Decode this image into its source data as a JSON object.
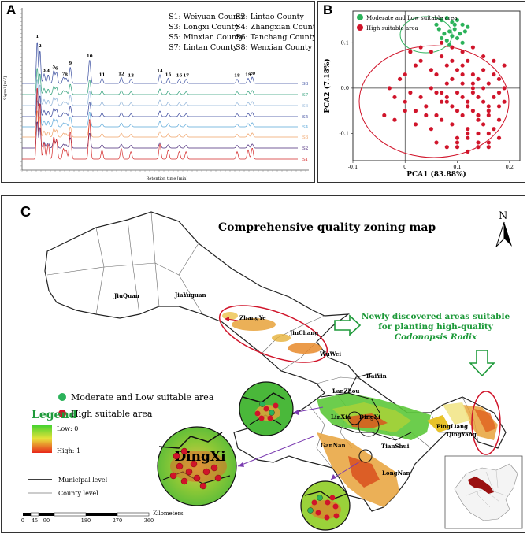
{
  "panelA": {
    "label": "A",
    "legend": [
      "S1: Weiyuan County",
      "S2: Lintao County",
      "S3: Longxi County",
      "S4: Zhangxian County",
      "S5: Minxian County",
      "S6: Tanchang County",
      "S7: Lintan County",
      "S8: Wenxian County"
    ],
    "ylabel": "Signal [mV]",
    "xlabel": "Retention time [min]",
    "traces": [
      {
        "name": "S8",
        "color": "#3b4fa0"
      },
      {
        "name": "S7",
        "color": "#2e9e78"
      },
      {
        "name": "S6",
        "color": "#8fb3d8"
      },
      {
        "name": "S5",
        "color": "#34449a"
      },
      {
        "name": "S4",
        "color": "#5aa7d9"
      },
      {
        "name": "S3",
        "color": "#f0a266"
      },
      {
        "name": "S2",
        "color": "#4a2a7a"
      },
      {
        "name": "S1",
        "color": "#d42a2a"
      }
    ],
    "peak_labels": [
      "1",
      "2",
      "3",
      "4",
      "5",
      "6",
      "7",
      "8",
      "9",
      "10",
      "11",
      "12",
      "13",
      "14",
      "15",
      "16",
      "17",
      "18",
      "19",
      "20"
    ]
  },
  "chart_data": {
    "type": "scatter",
    "title": "",
    "xlabel": "PCA1 (83.88%)",
    "ylabel": "PCA2 (7.18%)",
    "xlim": [
      -0.1,
      0.22
    ],
    "ylim": [
      -0.16,
      0.17
    ],
    "xticks": [
      "-0.1",
      "0",
      "0.1",
      "0.2"
    ],
    "yticks": [
      "0.1",
      "0.0",
      "-0.1"
    ],
    "legend": [
      "Moderate and Low suitable area",
      "High suitable area"
    ],
    "series": [
      {
        "name": "Moderate and Low suitable area",
        "color": "#2bb25a",
        "x": [
          0.06,
          0.07,
          0.08,
          0.09,
          0.1,
          0.11,
          0.12,
          0.065,
          0.075,
          0.085,
          0.095,
          0.105,
          0.115,
          0.07,
          0.08,
          0.09,
          0.1,
          0.11,
          0.085,
          0.095
        ],
        "y": [
          0.14,
          0.15,
          0.155,
          0.145,
          0.15,
          0.14,
          0.135,
          0.13,
          0.12,
          0.125,
          0.13,
          0.12,
          0.125,
          0.11,
          0.105,
          0.115,
          0.11,
          0.1,
          0.095,
          0.14
        ]
      },
      {
        "name": "High suitable area",
        "color": "#d0142a",
        "x": [
          -0.03,
          -0.01,
          0.0,
          0.02,
          0.03,
          0.05,
          0.06,
          0.07,
          0.08,
          0.09,
          0.1,
          0.11,
          0.12,
          0.13,
          0.14,
          0.15,
          0.16,
          0.17,
          0.18,
          0.19,
          -0.02,
          0.0,
          0.01,
          0.03,
          0.04,
          0.06,
          0.07,
          0.08,
          0.09,
          0.1,
          0.11,
          0.12,
          0.13,
          0.14,
          0.15,
          0.16,
          0.17,
          0.18,
          0.19,
          0.08,
          -0.04,
          -0.02,
          0.0,
          0.02,
          0.04,
          0.05,
          0.07,
          0.09,
          0.11,
          0.12,
          0.13,
          0.14,
          0.15,
          0.16,
          0.17,
          0.18,
          0.1,
          0.12,
          0.14,
          0.16,
          0.01,
          0.03,
          0.05,
          0.07,
          0.09,
          0.11,
          0.13,
          0.15,
          0.17,
          0.19,
          0.06,
          0.08,
          0.1,
          0.12,
          0.14,
          0.16,
          0.18,
          0.09,
          0.11,
          0.13,
          0.02,
          0.04,
          0.06,
          0.08,
          0.1,
          0.12,
          0.14,
          0.16,
          0.18,
          0.05,
          0.07,
          0.09,
          0.11,
          0.13,
          0.15,
          0.17,
          0.1,
          0.12,
          0.14,
          0.16
        ],
        "y": [
          0.0,
          0.02,
          0.03,
          0.05,
          0.06,
          0.04,
          0.03,
          0.07,
          0.05,
          0.06,
          0.04,
          0.05,
          0.06,
          0.03,
          0.02,
          0.04,
          0.01,
          0.03,
          0.02,
          0.0,
          -0.02,
          -0.03,
          -0.01,
          -0.02,
          -0.04,
          -0.01,
          -0.03,
          -0.02,
          -0.04,
          -0.01,
          -0.02,
          -0.03,
          -0.01,
          -0.02,
          -0.03,
          -0.04,
          -0.02,
          -0.01,
          -0.03,
          0.01,
          -0.06,
          -0.07,
          -0.05,
          -0.08,
          -0.06,
          -0.09,
          -0.07,
          -0.08,
          -0.06,
          -0.09,
          -0.05,
          -0.07,
          -0.08,
          -0.06,
          -0.09,
          -0.07,
          -0.11,
          -0.1,
          -0.12,
          -0.1,
          0.08,
          0.09,
          0.08,
          0.1,
          0.09,
          0.08,
          0.09,
          0.07,
          0.06,
          0.05,
          -0.12,
          -0.13,
          -0.12,
          -0.14,
          -0.13,
          -0.12,
          -0.11,
          0.02,
          0.01,
          0.0,
          -0.05,
          -0.04,
          -0.06,
          -0.03,
          -0.05,
          -0.04,
          -0.06,
          -0.05,
          -0.04,
          0.0,
          -0.01,
          0.02,
          0.03,
          0.01,
          0.0,
          -0.02,
          -0.13,
          -0.11,
          -0.1,
          -0.13
        ]
      }
    ]
  },
  "panelB": {
    "label": "B"
  },
  "panelC": {
    "label": "C",
    "title": "Comprehensive quality zoning map",
    "north": "N",
    "new_areas_line1": "Newly discovered areas suitable",
    "new_areas_line2": "for planting high-quality",
    "new_areas_line3": "Codonopsis Radix",
    "legend_moderate": "Moderate and Low suitable area",
    "legend_high": "High suitable area",
    "legend_title": "Legend",
    "gradient_low": "Low: 0",
    "gradient_high": "High: 1",
    "municipal": "Municipal level",
    "county": "County level",
    "scale_ticks": [
      "0",
      "45",
      "90",
      "180",
      "270",
      "360"
    ],
    "scale_unit": "Kilometers",
    "cities": [
      "JiuQuan",
      "JiaYuguan",
      "ZhangYe",
      "JinChang",
      "WuWei",
      "BaiYin",
      "LanZhou",
      "LinXia",
      "DingXi",
      "QingYang",
      "PingLiang",
      "GanNan",
      "TianShui",
      "LongNan"
    ],
    "zoom_label": "DingXi"
  },
  "colors": {
    "green": "#2bb25a",
    "red": "#d0142a",
    "accent_green": "#1e9a3a"
  }
}
